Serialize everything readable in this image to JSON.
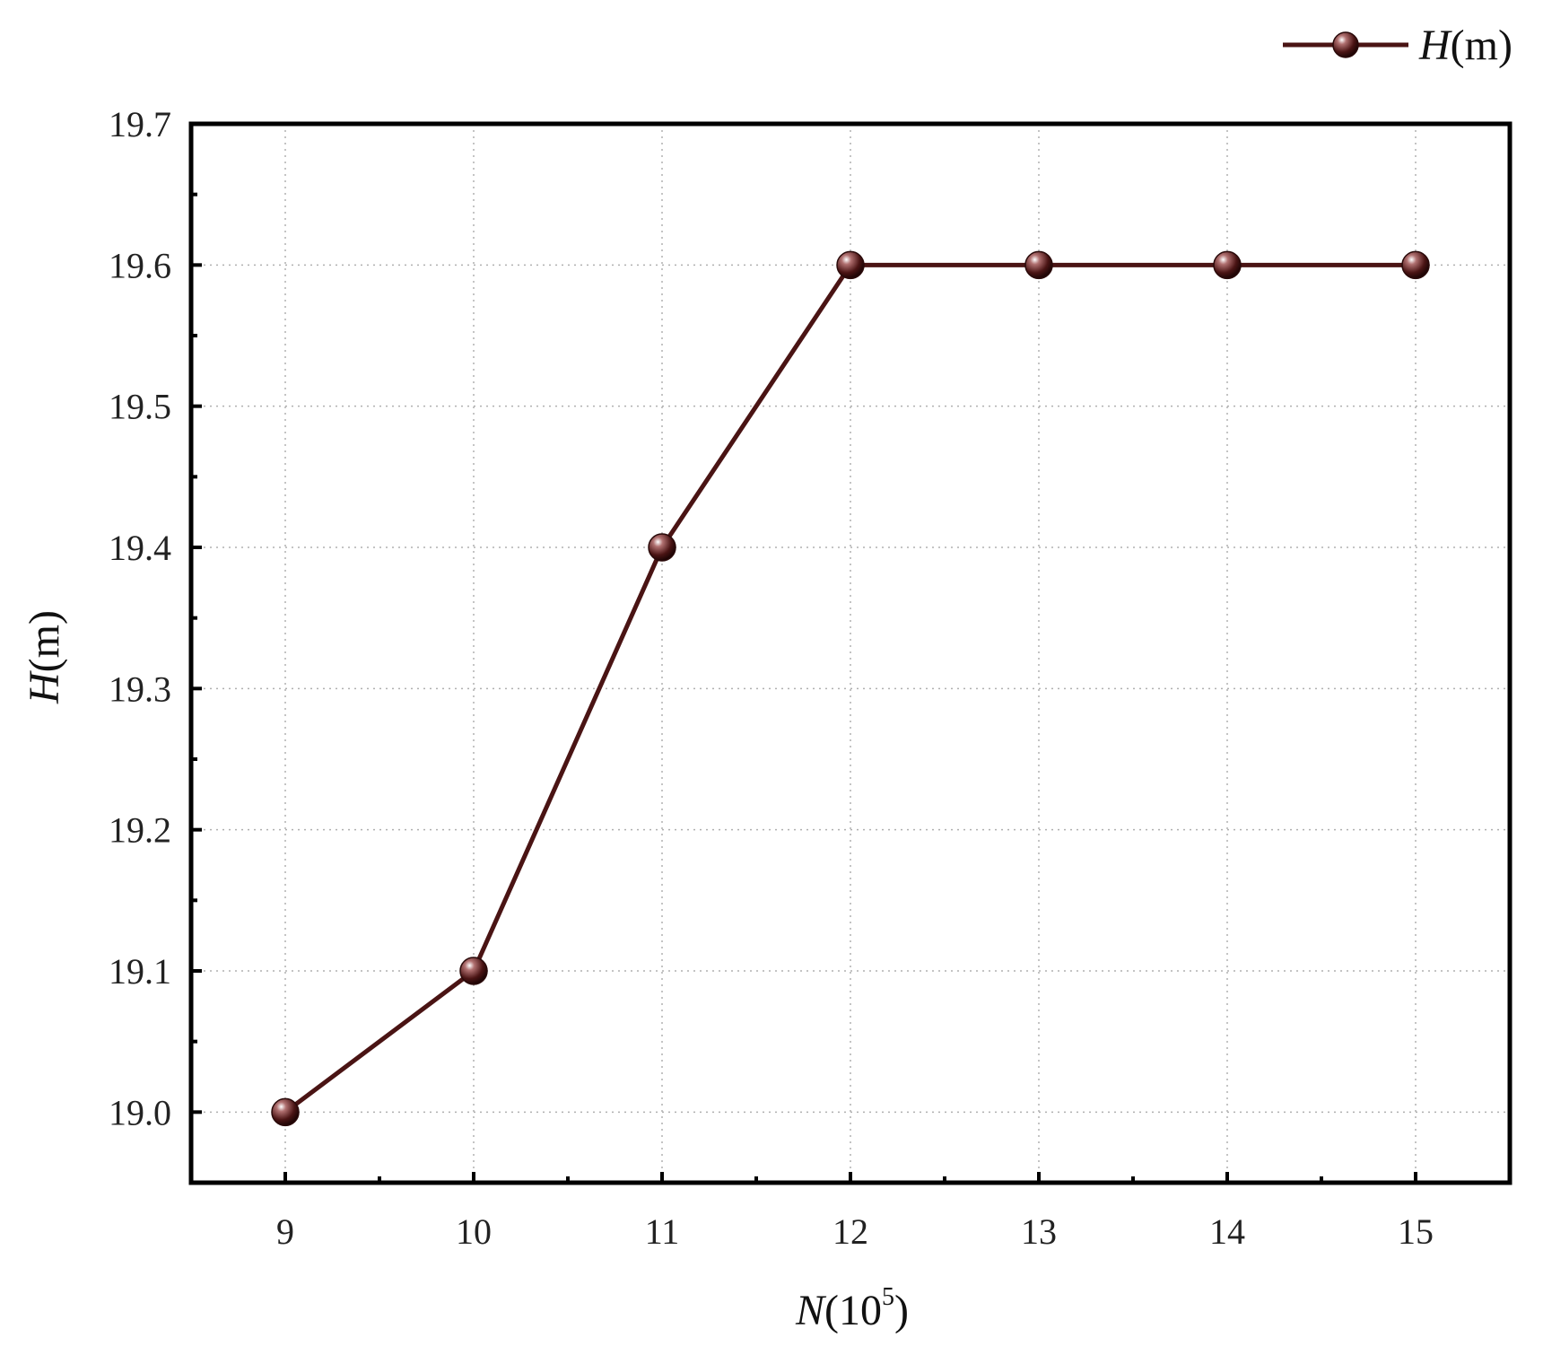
{
  "chart_data": {
    "type": "line",
    "x": [
      9,
      10,
      11,
      12,
      13,
      14,
      15
    ],
    "series": [
      {
        "name": "H(m)",
        "values": [
          19.0,
          19.1,
          19.4,
          19.6,
          19.6,
          19.6,
          19.6
        ]
      }
    ],
    "xlabel": {
      "var": "N",
      "unit_base": "(10",
      "unit_exp": "5",
      "unit_close": ")"
    },
    "ylabel": {
      "var": "H",
      "unit": "(m)"
    },
    "legend": {
      "var": "H",
      "unit": "(m)",
      "position": "top-right"
    },
    "xlim": [
      8.5,
      15.5
    ],
    "ylim": [
      18.95,
      19.7
    ],
    "xticks": [
      "9",
      "10",
      "11",
      "12",
      "13",
      "14",
      "15"
    ],
    "yticks": [
      "19.0",
      "19.1",
      "19.2",
      "19.3",
      "19.4",
      "19.5",
      "19.6",
      "19.7"
    ],
    "grid": true,
    "colors": {
      "line": "#4a1414",
      "marker": "#5a2020",
      "axis": "#000000",
      "grid": "#b0b0b0"
    }
  }
}
